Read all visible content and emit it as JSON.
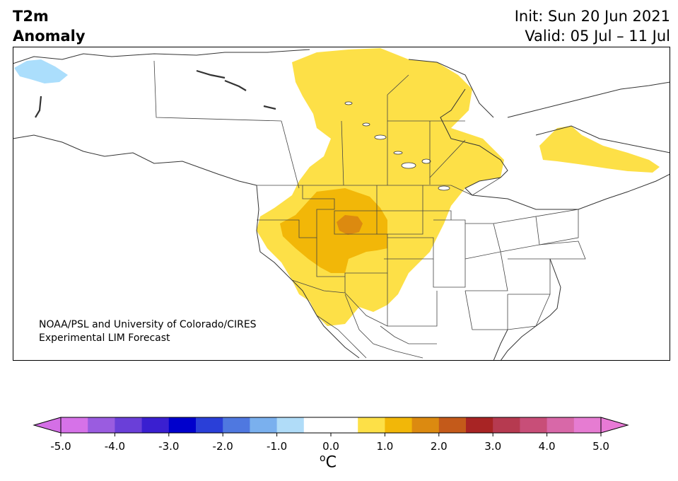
{
  "title": {
    "left_line1": "T2m",
    "left_line2": "Anomaly",
    "init": "Init: Sun 20 Jun 2021",
    "valid": "Valid: 05 Jul – 11 Jul"
  },
  "credit": {
    "line1": "NOAA/PSL and University of Colorado/CIRES",
    "line2": "Experimental LIM Forecast"
  },
  "colorbar": {
    "unit_sup": "o",
    "unit_main": "C",
    "ticks": [
      "-5.0",
      "-4.0",
      "-3.0",
      "-2.0",
      "-1.0",
      "0.0",
      "1.0",
      "2.0",
      "3.0",
      "4.0",
      "5.0"
    ],
    "tick_values": [
      -5,
      -4,
      -3,
      -2,
      -1,
      0,
      1,
      2,
      3,
      4,
      5
    ],
    "min": -5.0,
    "max": 5.0,
    "step": 0.5,
    "under_color": "#d46fe6",
    "over_color": "#e87ad6",
    "colors": [
      "#d672e8",
      "#9a5ce0",
      "#6a3fd8",
      "#3a1fd0",
      "#0000cc",
      "#2a3fd8",
      "#4f78e0",
      "#7ab0ee",
      "#b0dcf8",
      "#ffffff",
      "#ffffff",
      "#fde047",
      "#f2b708",
      "#dc8a10",
      "#c45a1a",
      "#a82424",
      "#b63a50",
      "#c84e78",
      "#d868a8",
      "#e67cd2"
    ]
  },
  "map_colors": {
    "land": "#ffffff",
    "border": "#444444",
    "anom_light_warm": "#fde047",
    "anom_warm": "#f2b708",
    "anom_hot": "#dc8a10",
    "anom_light_cool": "#abdefc"
  }
}
